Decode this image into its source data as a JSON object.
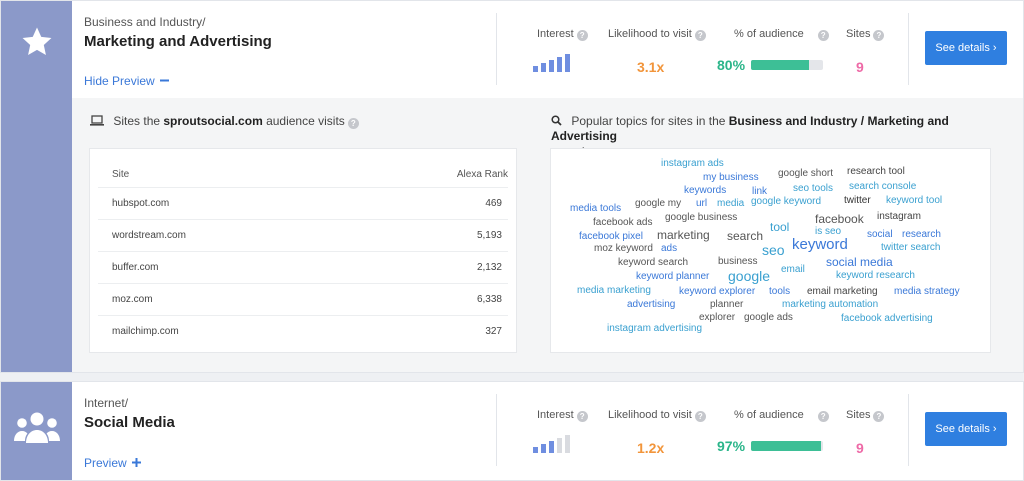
{
  "colors": {
    "accent": "#2f7fe0",
    "rail": "#8b99c9",
    "orange": "#f2953b",
    "green": "#2bb58a",
    "pink": "#ee6aa7"
  },
  "categories": [
    {
      "icon": "star-icon",
      "breadcrumb": "Business and Industry/",
      "title": "Marketing and Advertising",
      "preview_label": "Hide Preview",
      "metrics": {
        "interest_label": "Interest",
        "likelihood_label": "Likelihood to visit",
        "audience_label": "% of audience",
        "sites_label": "Sites",
        "interest_level": 5,
        "likelihood": "3.1x",
        "audience_pct": "80%",
        "audience_fraction": 0.8,
        "sites": "9"
      },
      "button": "See details ›",
      "preview": {
        "sites_title_pre": "Sites the ",
        "sites_title_domain": "sproutsocial.com",
        "sites_title_post": " audience visits",
        "topics_title_pre": "Popular topics for sites in the ",
        "topics_title_bold": "Business and Industry / Marketing and Advertising",
        "topics_title_post": "category",
        "table_headers": {
          "site": "Site",
          "rank": "Alexa Rank"
        },
        "rows": [
          {
            "site": "hubspot.com",
            "rank": "469"
          },
          {
            "site": "wordstream.com",
            "rank": "5,193"
          },
          {
            "site": "buffer.com",
            "rank": "2,132"
          },
          {
            "site": "moz.com",
            "rank": "6,338"
          },
          {
            "site": "mailchimp.com",
            "rank": "327"
          }
        ],
        "words": [
          "instagram ads",
          "my business",
          "google short",
          "research tool",
          "keywords",
          "link",
          "seo tools",
          "search console",
          "media tools",
          "google my",
          "url",
          "media",
          "google keyword",
          "twitter",
          "keyword tool",
          "facebook ads",
          "google business",
          "facebook",
          "instagram",
          "tool",
          "facebook pixel",
          "marketing",
          "search",
          "is seo",
          "social",
          "research",
          "moz keyword",
          "ads",
          "seo",
          "keyword",
          "twitter search",
          "keyword search",
          "business",
          "social media",
          "email",
          "keyword planner",
          "google",
          "keyword research",
          "media marketing",
          "keyword explorer",
          "tools",
          "email marketing",
          "media strategy",
          "advertising",
          "planner",
          "marketing automation",
          "explorer",
          "google ads",
          "facebook advertising",
          "instagram advertising"
        ]
      }
    },
    {
      "icon": "people-icon",
      "breadcrumb": "Internet/",
      "title": "Social Media",
      "preview_label": "Preview",
      "metrics": {
        "interest_label": "Interest",
        "likelihood_label": "Likelihood to visit",
        "audience_label": "% of audience",
        "sites_label": "Sites",
        "interest_level": 3,
        "likelihood": "1.2x",
        "audience_pct": "97%",
        "audience_fraction": 0.97,
        "sites": "9"
      },
      "button": "See details ›"
    }
  ]
}
